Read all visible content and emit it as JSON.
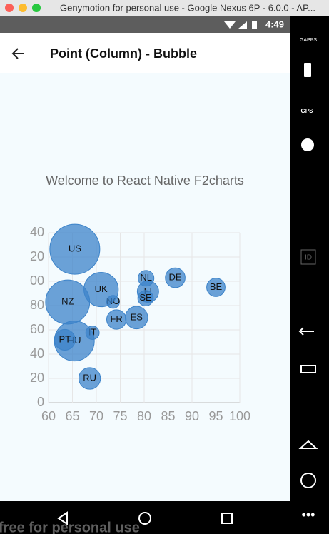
{
  "window": {
    "title": "Genymotion for personal use - Google Nexus 6P - 6.0.0 - AP..."
  },
  "status_bar": {
    "time": "4:49"
  },
  "app_bar": {
    "title": "Point (Column) - Bubble"
  },
  "sidebar": {
    "labels": [
      "GAPPS",
      "GPS",
      "ID"
    ]
  },
  "watermark": "free for personal use",
  "chart_data": {
    "type": "bubble",
    "title": "Welcome to React Native F2charts",
    "x": [
      95,
      86.5,
      80.8,
      80.4,
      80.3,
      78.4,
      74.2,
      73.5,
      71,
      69.2,
      68.6,
      65.5,
      65.4,
      63.4,
      64
    ],
    "values": [
      95,
      102.9,
      91.5,
      102.5,
      86.1,
      70.1,
      68.5,
      83.1,
      93.2,
      57.6,
      20,
      126.4,
      50.8,
      51.8,
      82.9
    ],
    "sizes": [
      13.8,
      14.7,
      15.8,
      12,
      11.8,
      16.6,
      14.5,
      10,
      24.7,
      10.4,
      16,
      35.3,
      28.5,
      15.4,
      31.3
    ],
    "point_labels": [
      "BE",
      "DE",
      "FI",
      "NL",
      "SE",
      "ES",
      "FR",
      "NO",
      "UK",
      "IT",
      "RU",
      "US",
      "HU",
      "PT",
      "NZ"
    ],
    "color": "#3c83c9",
    "xlim": [
      60,
      100
    ],
    "xticks": [
      60,
      65,
      70,
      75,
      80,
      85,
      90,
      95,
      100
    ],
    "ylim": [
      0,
      140
    ],
    "yticks": [
      0,
      20,
      40,
      60,
      80,
      {
        "value": 100,
        "label": "00"
      },
      {
        "value": 120,
        "label": "20"
      },
      {
        "value": 140,
        "label": "40"
      }
    ],
    "grid": true
  }
}
